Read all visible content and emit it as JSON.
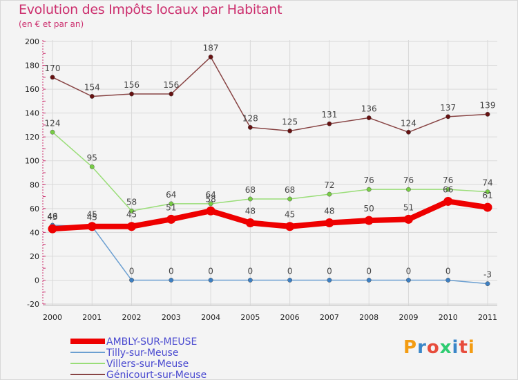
{
  "header": {
    "title": "Evolution des Impôts locaux par Habitant",
    "subtitle": "(en € et par an)"
  },
  "logo": {
    "text": "Proxiti",
    "colors": [
      "#f39c12",
      "#3a86c8",
      "#e74c3c",
      "#2ecc71",
      "#3a86c8",
      "#e74c3c",
      "#f39c12"
    ]
  },
  "chart_data": {
    "type": "line",
    "title": "Evolution des Impôts locaux par Habitant",
    "subtitle": "(en € et par an)",
    "xlabel": "",
    "ylabel": "",
    "ylim": [
      -20,
      200
    ],
    "yticks": [
      -20,
      0,
      20,
      40,
      60,
      80,
      100,
      120,
      140,
      160,
      180,
      200
    ],
    "x": [
      "2000",
      "2001",
      "2002",
      "2003",
      "2004",
      "2005",
      "2006",
      "2007",
      "2008",
      "2009",
      "2010",
      "2011"
    ],
    "legend_position": "bottom-left",
    "series": [
      {
        "name": "AMBLY-SUR-MEUSE",
        "color": "#ee0000",
        "dot_color": "#ee0000",
        "width": 8,
        "values": [
          43,
          45,
          45,
          51,
          58,
          48,
          45,
          48,
          50,
          51,
          66,
          61
        ],
        "labels": [
          "43",
          "45",
          "45",
          "51",
          "58",
          "48",
          "45",
          "48",
          "50",
          "51",
          "66",
          "61"
        ]
      },
      {
        "name": "Tilly-sur-Meuse",
        "color": "#6b9fd1",
        "dot_color": "#3d7fc2",
        "width": 1.5,
        "values": [
          46,
          45,
          0,
          0,
          0,
          0,
          0,
          0,
          0,
          0,
          0,
          -3
        ],
        "labels": [
          "46",
          "45",
          "0",
          "0",
          "0",
          "0",
          "0",
          "0",
          "0",
          "0",
          "0",
          "-3"
        ]
      },
      {
        "name": "Villers-sur-Meuse",
        "color": "#99dd77",
        "dot_color": "#77cc44",
        "width": 1.5,
        "values": [
          124,
          95,
          58,
          64,
          64,
          68,
          68,
          72,
          76,
          76,
          76,
          74
        ],
        "labels": [
          "124",
          "95",
          "58",
          "64",
          "64",
          "68",
          "68",
          "72",
          "76",
          "76",
          "76",
          "74"
        ]
      },
      {
        "name": "Génicourt-sur-Meuse",
        "color": "#884444",
        "dot_color": "#661111",
        "width": 1.5,
        "values": [
          170,
          154,
          156,
          156,
          187,
          128,
          125,
          131,
          136,
          124,
          137,
          139
        ],
        "labels": [
          "170",
          "154",
          "156",
          "156",
          "187",
          "128",
          "125",
          "131",
          "136",
          "124",
          "137",
          "139"
        ]
      }
    ]
  }
}
